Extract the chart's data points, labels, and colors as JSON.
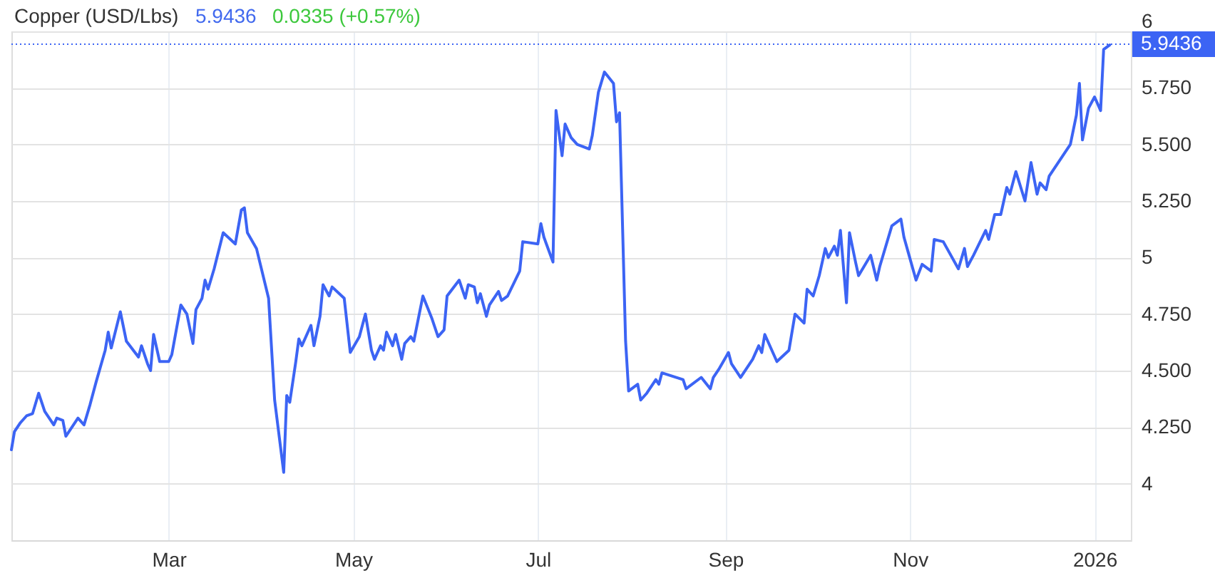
{
  "chart_data": {
    "type": "line",
    "title": "Copper (USD/Lbs)",
    "annotations": [
      "5.9436",
      "0.0335 (+0.57%)"
    ],
    "x": [
      "2025-01-08",
      "2025-01-09",
      "2025-01-11",
      "2025-01-13",
      "2025-01-15",
      "2025-01-17",
      "2025-01-19",
      "2025-01-22",
      "2025-01-23",
      "2025-01-25",
      "2025-01-26",
      "2025-01-30",
      "2025-02-01",
      "2025-02-03",
      "2025-02-05",
      "2025-02-08",
      "2025-02-09",
      "2025-02-10",
      "2025-02-13",
      "2025-02-15",
      "2025-02-19",
      "2025-02-20",
      "2025-02-22",
      "2025-02-23",
      "2025-02-24",
      "2025-02-26",
      "2025-03-01",
      "2025-03-02",
      "2025-03-05",
      "2025-03-07",
      "2025-03-09",
      "2025-03-10",
      "2025-03-12",
      "2025-03-13",
      "2025-03-14",
      "2025-03-16",
      "2025-03-19",
      "2025-03-23",
      "2025-03-25",
      "2025-03-26",
      "2025-03-27",
      "2025-03-30",
      "2025-04-03",
      "2025-04-05",
      "2025-04-08",
      "2025-04-09",
      "2025-04-10",
      "2025-04-12",
      "2025-04-13",
      "2025-04-14",
      "2025-04-17",
      "2025-04-18",
      "2025-04-20",
      "2025-04-21",
      "2025-04-23",
      "2025-04-24",
      "2025-04-28",
      "2025-04-30",
      "2025-05-03",
      "2025-05-05",
      "2025-05-07",
      "2025-05-08",
      "2025-05-10",
      "2025-05-11",
      "2025-05-12",
      "2025-05-14",
      "2025-05-15",
      "2025-05-17",
      "2025-05-18",
      "2025-05-20",
      "2025-05-21",
      "2025-05-24",
      "2025-05-27",
      "2025-05-29",
      "2025-05-31",
      "2025-06-01",
      "2025-06-05",
      "2025-06-07",
      "2025-06-08",
      "2025-06-10",
      "2025-06-11",
      "2025-06-12",
      "2025-06-14",
      "2025-06-15",
      "2025-06-18",
      "2025-06-19",
      "2025-06-21",
      "2025-06-25",
      "2025-06-26",
      "2025-07-01",
      "2025-07-02",
      "2025-07-03",
      "2025-07-06",
      "2025-07-07",
      "2025-07-09",
      "2025-07-10",
      "2025-07-12",
      "2025-07-14",
      "2025-07-18",
      "2025-07-19",
      "2025-07-21",
      "2025-07-23",
      "2025-07-26",
      "2025-07-27",
      "2025-07-28",
      "2025-07-30",
      "2025-07-31",
      "2025-08-03",
      "2025-08-04",
      "2025-08-06",
      "2025-08-09",
      "2025-08-10",
      "2025-08-11",
      "2025-08-18",
      "2025-08-19",
      "2025-08-24",
      "2025-08-27",
      "2025-08-28",
      "2025-08-30",
      "2025-09-02",
      "2025-09-03",
      "2025-09-05",
      "2025-09-06",
      "2025-09-10",
      "2025-09-12",
      "2025-09-13",
      "2025-09-14",
      "2025-09-17",
      "2025-09-18",
      "2025-09-22",
      "2025-09-24",
      "2025-09-27",
      "2025-09-28",
      "2025-09-30",
      "2025-10-02",
      "2025-10-04",
      "2025-10-05",
      "2025-10-07",
      "2025-10-08",
      "2025-10-09",
      "2025-10-11",
      "2025-10-12",
      "2025-10-14",
      "2025-10-15",
      "2025-10-19",
      "2025-10-21",
      "2025-10-22",
      "2025-10-26",
      "2025-10-29",
      "2025-10-30",
      "2025-11-03",
      "2025-11-05",
      "2025-11-08",
      "2025-11-09",
      "2025-11-12",
      "2025-11-17",
      "2025-11-19",
      "2025-11-20",
      "2025-11-22",
      "2025-11-26",
      "2025-11-27",
      "2025-11-29",
      "2025-12-01",
      "2025-12-03",
      "2025-12-04",
      "2025-12-06",
      "2025-12-09",
      "2025-12-11",
      "2025-12-13",
      "2025-12-14",
      "2025-12-16",
      "2025-12-17",
      "2025-12-24",
      "2025-12-26",
      "2025-12-27",
      "2025-12-28",
      "2025-12-30",
      "2026-01-01",
      "2026-01-03",
      "2026-01-04",
      "2026-01-06"
    ],
    "series": [
      {
        "color": "#3c64f4",
        "values": [
          4.15,
          4.23,
          4.27,
          4.3,
          4.31,
          4.4,
          4.32,
          4.26,
          4.29,
          4.28,
          4.21,
          4.29,
          4.26,
          4.35,
          4.45,
          4.59,
          4.67,
          4.6,
          4.76,
          4.63,
          4.56,
          4.61,
          4.53,
          4.5,
          4.66,
          4.54,
          4.54,
          4.57,
          4.79,
          4.75,
          4.62,
          4.77,
          4.82,
          4.9,
          4.86,
          4.95,
          5.11,
          5.06,
          5.21,
          5.22,
          5.11,
          5.04,
          4.82,
          4.37,
          4.05,
          4.39,
          4.36,
          4.54,
          4.64,
          4.61,
          4.7,
          4.61,
          4.74,
          4.88,
          4.83,
          4.87,
          4.82,
          4.58,
          4.65,
          4.75,
          4.59,
          4.55,
          4.61,
          4.59,
          4.67,
          4.61,
          4.66,
          4.55,
          4.62,
          4.65,
          4.63,
          4.83,
          4.73,
          4.65,
          4.68,
          4.83,
          4.9,
          4.82,
          4.88,
          4.87,
          4.8,
          4.84,
          4.74,
          4.79,
          4.85,
          4.81,
          4.83,
          4.94,
          5.07,
          5.06,
          5.15,
          5.09,
          4.98,
          5.65,
          5.45,
          5.59,
          5.53,
          5.5,
          5.48,
          5.54,
          5.73,
          5.82,
          5.77,
          5.6,
          5.64,
          4.63,
          4.41,
          4.44,
          4.37,
          4.4,
          4.46,
          4.44,
          4.49,
          4.46,
          4.42,
          4.47,
          4.42,
          4.47,
          4.51,
          4.58,
          4.53,
          4.49,
          4.47,
          4.55,
          4.61,
          4.58,
          4.66,
          4.57,
          4.54,
          4.59,
          4.75,
          4.71,
          4.86,
          4.83,
          4.92,
          5.04,
          5.0,
          5.05,
          5.01,
          5.12,
          4.8,
          5.11,
          4.98,
          4.92,
          5.01,
          4.9,
          4.96,
          5.14,
          5.17,
          5.09,
          4.9,
          4.97,
          4.94,
          5.08,
          5.07,
          4.95,
          5.04,
          4.96,
          5.01,
          5.12,
          5.08,
          5.19,
          5.19,
          5.31,
          5.28,
          5.38,
          5.25,
          5.42,
          5.28,
          5.33,
          5.3,
          5.36,
          5.5,
          5.63,
          5.77,
          5.52,
          5.66,
          5.71,
          5.65,
          5.92,
          5.94
        ]
      }
    ],
    "xlim": [
      "2025-01-08",
      "2026-01-13"
    ],
    "xticks": [
      {
        "value": "2025-03-01",
        "label": "Mar"
      },
      {
        "value": "2025-05-01",
        "label": "May"
      },
      {
        "value": "2025-07-01",
        "label": "Jul"
      },
      {
        "value": "2025-09-01",
        "label": "Sep"
      },
      {
        "value": "2025-11-01",
        "label": "Nov"
      },
      {
        "value": "2026-01-01",
        "label": "2026"
      }
    ],
    "ylim": [
      3.75,
      6
    ],
    "yticks": [
      4,
      {
        "value": 4.25,
        "label": "4.250"
      },
      {
        "value": 4.5,
        "label": "4.500"
      },
      {
        "value": 4.75,
        "label": "4.750"
      },
      5,
      {
        "value": 5.25,
        "label": "5.250"
      },
      {
        "value": 5.5,
        "label": "5.500"
      },
      {
        "value": 5.75,
        "label": "5.750"
      },
      6
    ],
    "grid": true,
    "ref_lines": [
      {
        "axis": "y",
        "value": 5.9436,
        "label": "5.9436",
        "color": "#3c64f4",
        "line_style": "dotted"
      }
    ]
  }
}
